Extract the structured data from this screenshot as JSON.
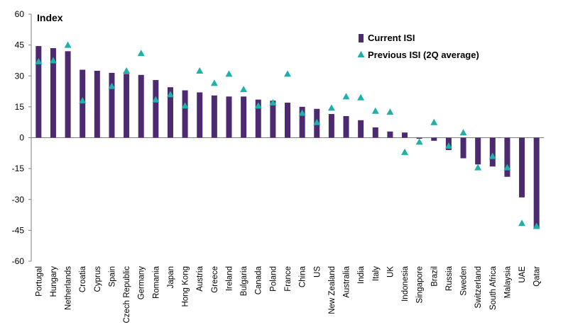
{
  "chart_data": {
    "type": "bar",
    "ylabel": "Index",
    "ylim": [
      -60,
      60
    ],
    "yticks": [
      60,
      45,
      30,
      15,
      0,
      -15,
      -30,
      -45,
      -60
    ],
    "categories": [
      "Portugal",
      "Hungary",
      "Netherlands",
      "Croatia",
      "Cyprus",
      "Spain",
      "Czech Republic",
      "Germany",
      "Romania",
      "Japan",
      "Hong Kong",
      "Austria",
      "Greece",
      "Ireland",
      "Bulgaria",
      "Canada",
      "Poland",
      "France",
      "China",
      "US",
      "New Zealand",
      "Australia",
      "India",
      "Italy",
      "UK",
      "Indonesia",
      "Singapore",
      "Brazil",
      "Russia",
      "Sweden",
      "Switzerland",
      "South Africa",
      "Malaysia",
      "UAE",
      "Qatar"
    ],
    "series": [
      {
        "name": "Current ISI",
        "kind": "bar",
        "color": "#4b2a6f",
        "values": [
          44.5,
          43.5,
          42,
          33,
          32.5,
          31.5,
          31,
          30.5,
          28,
          24.5,
          23,
          22,
          20.5,
          20,
          20,
          18.5,
          18,
          17,
          15,
          14,
          11.5,
          10.5,
          8.5,
          5,
          3,
          2.5,
          -0.5,
          -1.5,
          -6,
          -10,
          -13,
          -14,
          -19,
          -29,
          -44
        ]
      },
      {
        "name": "Previous ISI (2Q average)",
        "kind": "marker",
        "color": "#1fb0a8",
        "values": [
          37,
          37.5,
          45,
          18,
          null,
          25,
          32.5,
          41,
          18.5,
          21,
          15.5,
          32.5,
          26.5,
          31,
          23.5,
          15.5,
          17,
          31,
          12,
          7.5,
          14.5,
          20,
          19.5,
          13,
          12.5,
          -7,
          -2,
          7.5,
          -4,
          2.5,
          -14.5,
          -9,
          -14.5,
          -41.5,
          -43
        ]
      }
    ],
    "legend_position": "top-right"
  }
}
